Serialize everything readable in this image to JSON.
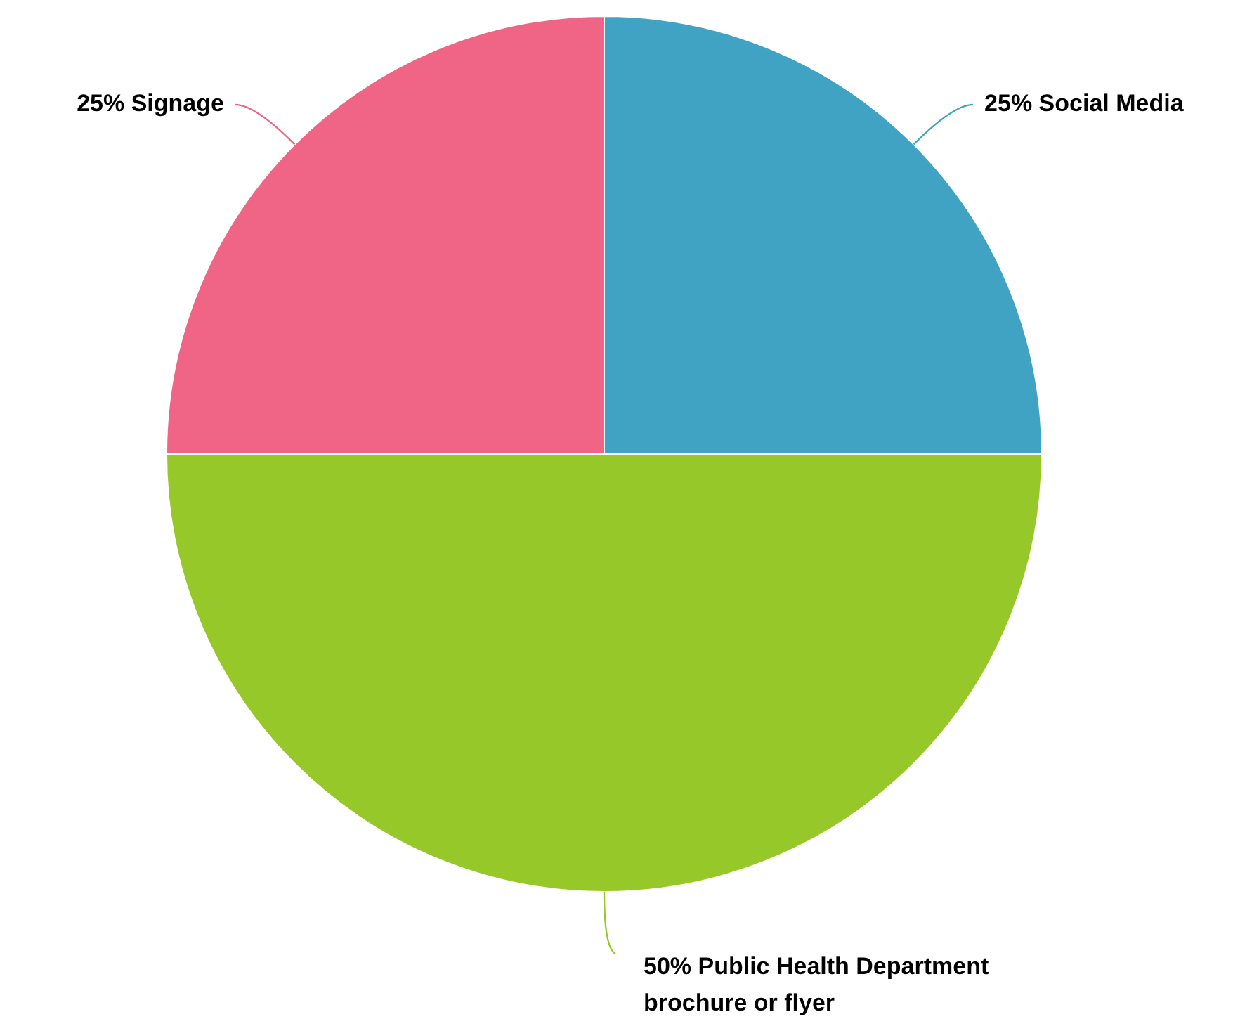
{
  "chart_data": {
    "type": "pie",
    "categories": [
      "Social Media",
      "Public Health Department brochure or flyer",
      "Signage"
    ],
    "values": [
      25,
      50,
      25
    ],
    "colors": [
      "#41a3c3",
      "#97c82a",
      "#f06585"
    ],
    "value_labels": [
      "25%",
      "50%",
      "25%"
    ],
    "legend": false
  }
}
